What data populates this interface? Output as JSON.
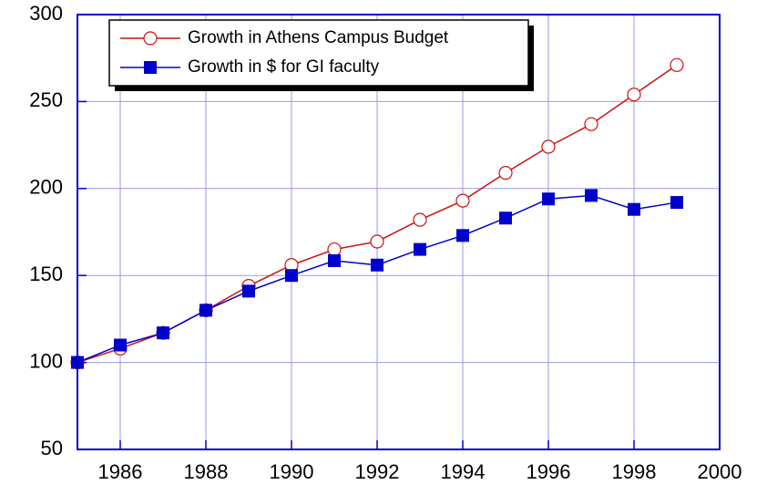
{
  "chart_data": {
    "type": "line",
    "x": [
      1985,
      1986,
      1987,
      1988,
      1989,
      1990,
      1991,
      1992,
      1993,
      1994,
      1995,
      1996,
      1997,
      1998,
      1999
    ],
    "series": [
      {
        "name": "Growth in Athens Campus Budget",
        "color": "#cc1111",
        "marker": "open-circle",
        "values": [
          100,
          108,
          117,
          130,
          144,
          156,
          165,
          169.5,
          182,
          193,
          209,
          224,
          237,
          254,
          271
        ]
      },
      {
        "name": "Growth in $ for GI faculty",
        "color": "#0000cc",
        "marker": "filled-square",
        "values": [
          100,
          110,
          117,
          130,
          141,
          150,
          158.5,
          156,
          165,
          173,
          183,
          194,
          196,
          188,
          192
        ]
      }
    ],
    "xlim": [
      1985,
      2000
    ],
    "xticks": [
      1986,
      1988,
      1990,
      1992,
      1994,
      1996,
      1998,
      2000
    ],
    "ylim": [
      50,
      300
    ],
    "yticks": [
      50,
      100,
      150,
      200,
      250,
      300
    ],
    "grid": true,
    "legend": "upper left"
  }
}
